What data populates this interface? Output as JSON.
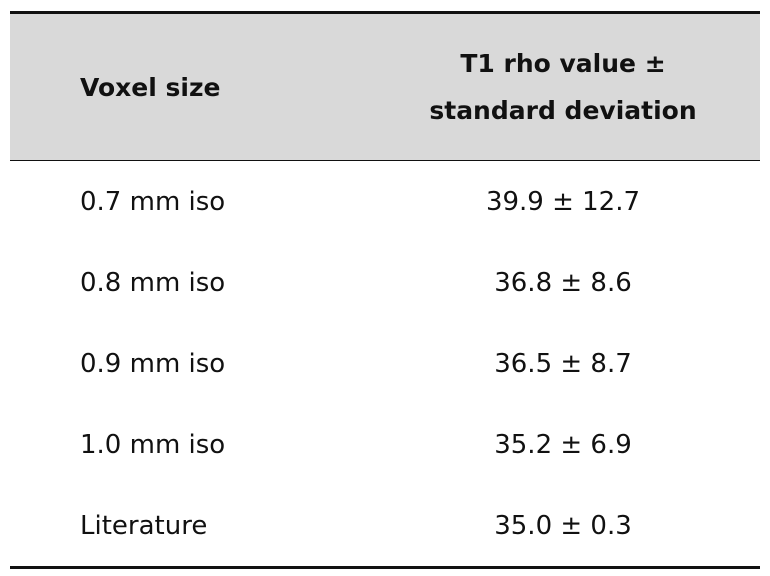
{
  "table": {
    "header": [
      "Voxel size",
      "T1 rho value ± standard deviation"
    ],
    "rows": [
      [
        "0.7 mm iso",
        "39.9 ± 12.7"
      ],
      [
        "0.8 mm iso",
        "36.8 ± 8.6"
      ],
      [
        "0.9 mm iso",
        "36.5 ± 8.7"
      ],
      [
        "1.0 mm iso",
        "35.2 ± 6.9"
      ],
      [
        "Literature",
        "35.0 ± 0.3"
      ]
    ]
  }
}
